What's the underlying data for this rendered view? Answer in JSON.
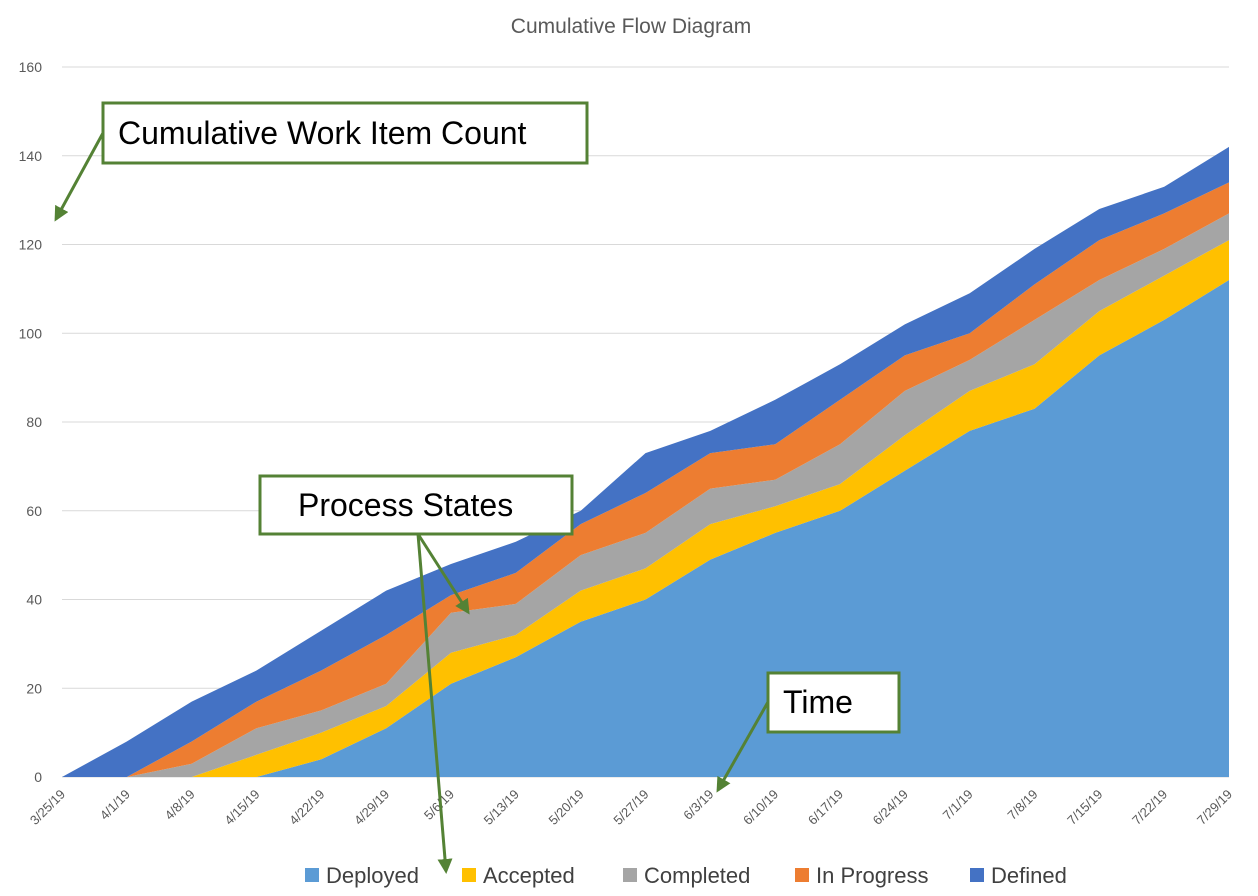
{
  "chart_data": {
    "type": "area",
    "stacked": true,
    "title": "Cumulative Flow Diagram",
    "xlabel": "",
    "ylabel": "",
    "ylim": [
      0,
      160
    ],
    "yticks": [
      0,
      20,
      40,
      60,
      80,
      100,
      120,
      140,
      160
    ],
    "grid": true,
    "legend_position": "bottom",
    "categories": [
      "3/25/19",
      "4/1/19",
      "4/8/19",
      "4/15/19",
      "4/22/19",
      "4/29/19",
      "5/6/19",
      "5/13/19",
      "5/20/19",
      "5/27/19",
      "6/3/19",
      "6/10/19",
      "6/17/19",
      "6/24/19",
      "7/1/19",
      "7/8/19",
      "7/15/19",
      "7/22/19",
      "7/29/19"
    ],
    "series": [
      {
        "name": "Deployed",
        "color": "#5b9bd5",
        "values": [
          0,
          0,
          0,
          0,
          4,
          11,
          21,
          27,
          35,
          40,
          49,
          55,
          60,
          69,
          78,
          83,
          95,
          103,
          112
        ]
      },
      {
        "name": "Accepted",
        "color": "#ffc000",
        "values": [
          0,
          0,
          0,
          5,
          6,
          5,
          7,
          5,
          7,
          7,
          8,
          6,
          6,
          8,
          9,
          10,
          10,
          10,
          9
        ]
      },
      {
        "name": "Completed",
        "color": "#a5a5a5",
        "values": [
          0,
          0,
          3,
          6,
          5,
          5,
          9,
          7,
          8,
          8,
          8,
          6,
          9,
          10,
          7,
          10,
          7,
          6,
          6
        ]
      },
      {
        "name": "In Progress",
        "color": "#ed7d31",
        "values": [
          0,
          0,
          5,
          6,
          9,
          11,
          4,
          7,
          7,
          9,
          8,
          8,
          10,
          8,
          6,
          8,
          9,
          8,
          7
        ]
      },
      {
        "name": "Defined",
        "color": "#4472c4",
        "values": [
          0,
          8,
          9,
          7,
          9,
          10,
          7,
          7,
          3,
          9,
          5,
          10,
          8,
          7,
          9,
          8,
          7,
          6,
          8
        ]
      }
    ]
  },
  "annotations": {
    "cumulative": "Cumulative Work Item Count",
    "states": "Process States",
    "time": "Time"
  },
  "colors": {
    "callout_border": "#548235",
    "arrow": "#548235"
  }
}
